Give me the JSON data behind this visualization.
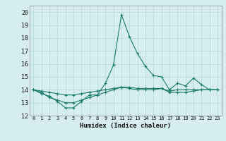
{
  "xlabel": "Humidex (Indice chaleur)",
  "ylabel": "",
  "bg_color": "#d6eef0",
  "grid_color": "#b0d8dc",
  "line_color": "#1a7a6a",
  "xlim": [
    -0.5,
    23.5
  ],
  "ylim": [
    12,
    20.5
  ],
  "yticks": [
    12,
    13,
    14,
    15,
    16,
    17,
    18,
    19,
    20
  ],
  "xticks": [
    0,
    1,
    2,
    3,
    4,
    5,
    6,
    7,
    8,
    9,
    10,
    11,
    12,
    13,
    14,
    15,
    16,
    17,
    18,
    19,
    20,
    21,
    22,
    23
  ],
  "series": [
    [
      14.0,
      13.7,
      13.5,
      13.1,
      12.6,
      12.6,
      13.1,
      13.6,
      13.6,
      14.5,
      15.9,
      19.8,
      18.1,
      16.8,
      15.8,
      15.1,
      15.0,
      14.0,
      14.5,
      14.3,
      14.9,
      14.4,
      14.0,
      14.0
    ],
    [
      14.0,
      13.8,
      13.4,
      13.2,
      13.0,
      13.0,
      13.2,
      13.4,
      13.6,
      13.8,
      14.0,
      14.2,
      14.1,
      14.0,
      14.0,
      14.0,
      14.1,
      13.8,
      13.8,
      13.8,
      13.9,
      14.0,
      14.0,
      14.0
    ],
    [
      14.0,
      13.9,
      13.8,
      13.7,
      13.6,
      13.6,
      13.7,
      13.8,
      13.9,
      14.0,
      14.1,
      14.2,
      14.2,
      14.1,
      14.1,
      14.1,
      14.1,
      13.9,
      14.0,
      14.0,
      14.0,
      14.0,
      14.0,
      14.0
    ]
  ]
}
